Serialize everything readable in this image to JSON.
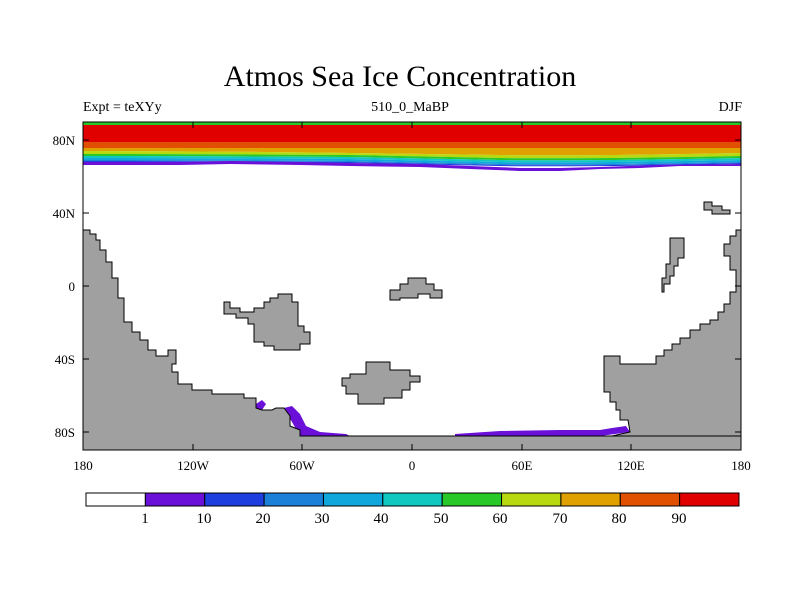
{
  "title": "Atmos Sea Ice Concentration",
  "subtitle_left": "Expt = teXYy",
  "subtitle_center": "510_0_MaBP",
  "subtitle_right": "DJF",
  "x_ticks": [
    "180",
    "120W",
    "60W",
    "0",
    "60E",
    "120E",
    "180"
  ],
  "y_ticks": [
    "80N",
    "40N",
    "0",
    "40S",
    "80S"
  ],
  "colorbar": {
    "labels": [
      "1",
      "10",
      "20",
      "30",
      "40",
      "50",
      "60",
      "70",
      "80",
      "90"
    ],
    "colors": [
      "#ffffff",
      "#6a10d8",
      "#1e3ee0",
      "#1a80d8",
      "#10a8dc",
      "#10c8c0",
      "#28c828",
      "#b8d810",
      "#e0a000",
      "#e05000",
      "#e00000"
    ]
  },
  "colors": {
    "land": "#a0a0a0",
    "ocean": "#ffffff"
  }
}
